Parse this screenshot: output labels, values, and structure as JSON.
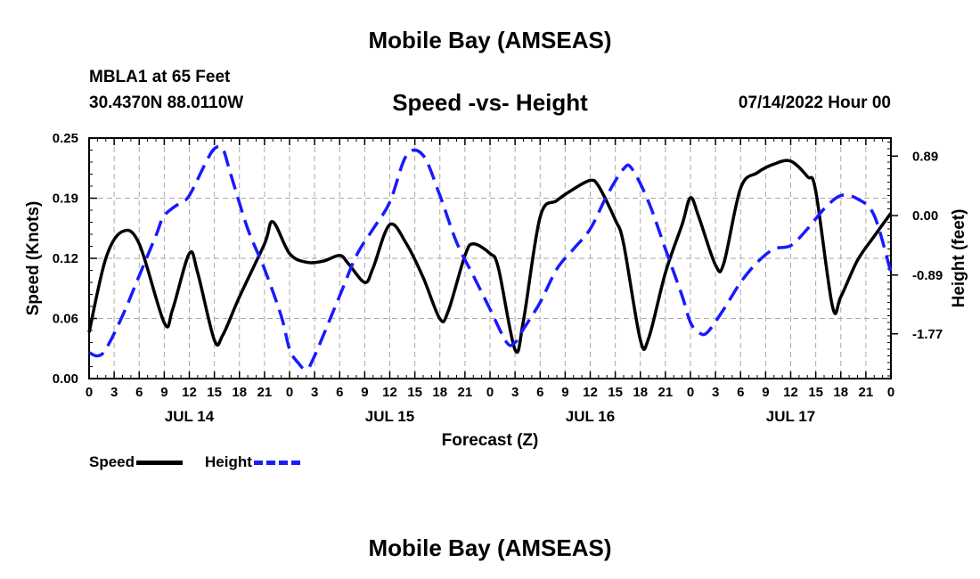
{
  "header": {
    "title": "Mobile Bay (AMSEAS)",
    "station": "MBLA1 at 65 Feet",
    "coords": "30.4370N  88.0110W",
    "subtitle": "Speed -vs- Height",
    "datetime": "07/14/2022 Hour 00"
  },
  "footer": {
    "title": "Mobile Bay (AMSEAS)"
  },
  "chart_data": {
    "type": "line",
    "xlabel": "Forecast (Z)",
    "ylabel_left": "Speed (Knots)",
    "ylabel_right": "Height (feet)",
    "xlim": [
      0,
      96
    ],
    "ylim_left": [
      0,
      0.25
    ],
    "ylim_right": [
      -2.44,
      1.16
    ],
    "left_ticks": [
      {
        "v": 0,
        "label": "0.00"
      },
      {
        "v": 0.0625,
        "label": "0.06"
      },
      {
        "v": 0.125,
        "label": "0.12"
      },
      {
        "v": 0.1875,
        "label": "0.19"
      },
      {
        "v": 0.25,
        "label": "0.25"
      }
    ],
    "right_ticks": [
      {
        "v": 0.89,
        "label": "0.89"
      },
      {
        "v": 0.0,
        "label": "0.00"
      },
      {
        "v": -0.89,
        "label": "-0.89"
      },
      {
        "v": -1.77,
        "label": "-1.77"
      }
    ],
    "x_tick_labels": [
      "0",
      "3",
      "6",
      "9",
      "12",
      "15",
      "18",
      "21",
      "0",
      "3",
      "6",
      "9",
      "12",
      "15",
      "18",
      "21",
      "0",
      "3",
      "6",
      "9",
      "12",
      "15",
      "18",
      "21",
      "0",
      "3",
      "6",
      "9",
      "12",
      "15",
      "18",
      "21",
      "0"
    ],
    "day_labels": [
      {
        "x": 12,
        "label": "JUL 14"
      },
      {
        "x": 36,
        "label": "JUL 15"
      },
      {
        "x": 60,
        "label": "JUL 16"
      },
      {
        "x": 84,
        "label": "JUL 17"
      }
    ],
    "grid": true,
    "legend": "bottom-left",
    "series": [
      {
        "name": "Speed",
        "axis": "left",
        "color": "#000000",
        "dash": "solid",
        "points": [
          [
            0,
            0.048
          ],
          [
            2,
            0.125
          ],
          [
            4,
            0.153
          ],
          [
            6,
            0.14
          ],
          [
            9,
            0.058
          ],
          [
            10,
            0.072
          ],
          [
            12,
            0.13
          ],
          [
            13,
            0.11
          ],
          [
            15,
            0.04
          ],
          [
            16,
            0.045
          ],
          [
            18,
            0.085
          ],
          [
            21,
            0.14
          ],
          [
            22,
            0.163
          ],
          [
            24,
            0.13
          ],
          [
            26,
            0.121
          ],
          [
            28,
            0.122
          ],
          [
            30,
            0.128
          ],
          [
            31,
            0.12
          ],
          [
            33,
            0.1
          ],
          [
            34,
            0.115
          ],
          [
            36,
            0.16
          ],
          [
            38,
            0.14
          ],
          [
            40,
            0.105
          ],
          [
            42,
            0.062
          ],
          [
            43,
            0.07
          ],
          [
            45,
            0.128
          ],
          [
            46,
            0.14
          ],
          [
            48,
            0.13
          ],
          [
            49,
            0.115
          ],
          [
            51,
            0.03
          ],
          [
            52,
            0.06
          ],
          [
            54,
            0.168
          ],
          [
            56,
            0.185
          ],
          [
            58,
            0.197
          ],
          [
            60,
            0.206
          ],
          [
            61,
            0.2
          ],
          [
            63,
            0.165
          ],
          [
            64,
            0.14
          ],
          [
            66,
            0.04
          ],
          [
            67,
            0.042
          ],
          [
            69,
            0.11
          ],
          [
            71,
            0.16
          ],
          [
            72,
            0.188
          ],
          [
            73,
            0.168
          ],
          [
            75,
            0.118
          ],
          [
            76,
            0.12
          ],
          [
            78,
            0.198
          ],
          [
            80,
            0.214
          ],
          [
            82,
            0.223
          ],
          [
            84,
            0.226
          ],
          [
            86,
            0.21
          ],
          [
            87,
            0.195
          ],
          [
            89,
            0.075
          ],
          [
            90,
            0.085
          ],
          [
            92,
            0.123
          ],
          [
            94,
            0.148
          ],
          [
            96,
            0.172
          ]
        ]
      },
      {
        "name": "Height",
        "axis": "right",
        "color": "#1a1aff",
        "dash": "dashed",
        "points": [
          [
            0,
            -2.05
          ],
          [
            1,
            -2.1
          ],
          [
            2,
            -2.0
          ],
          [
            4,
            -1.5
          ],
          [
            6,
            -0.9
          ],
          [
            8,
            -0.3
          ],
          [
            9,
            0.0
          ],
          [
            11,
            0.2
          ],
          [
            12,
            0.3
          ],
          [
            14,
            0.8
          ],
          [
            15,
            1.0
          ],
          [
            16,
            1.0
          ],
          [
            17,
            0.6
          ],
          [
            19,
            -0.2
          ],
          [
            21,
            -0.8
          ],
          [
            23,
            -1.5
          ],
          [
            24,
            -2.0
          ],
          [
            25,
            -2.2
          ],
          [
            26,
            -2.3
          ],
          [
            27,
            -2.1
          ],
          [
            30,
            -1.2
          ],
          [
            32,
            -0.6
          ],
          [
            34,
            -0.2
          ],
          [
            36,
            0.2
          ],
          [
            38,
            0.9
          ],
          [
            40,
            0.9
          ],
          [
            42,
            0.3
          ],
          [
            44,
            -0.4
          ],
          [
            46,
            -0.9
          ],
          [
            48,
            -1.4
          ],
          [
            50,
            -1.9
          ],
          [
            51,
            -1.9
          ],
          [
            52,
            -1.7
          ],
          [
            54,
            -1.3
          ],
          [
            56,
            -0.8
          ],
          [
            58,
            -0.5
          ],
          [
            60,
            -0.2
          ],
          [
            62,
            0.3
          ],
          [
            64,
            0.7
          ],
          [
            65,
            0.7
          ],
          [
            67,
            0.2
          ],
          [
            69,
            -0.5
          ],
          [
            71,
            -1.2
          ],
          [
            72,
            -1.6
          ],
          [
            73,
            -1.75
          ],
          [
            74,
            -1.75
          ],
          [
            76,
            -1.4
          ],
          [
            78,
            -1.0
          ],
          [
            80,
            -0.7
          ],
          [
            82,
            -0.5
          ],
          [
            84,
            -0.45
          ],
          [
            86,
            -0.2
          ],
          [
            88,
            0.1
          ],
          [
            90,
            0.3
          ],
          [
            92,
            0.25
          ],
          [
            94,
            0.0
          ],
          [
            96,
            -0.85
          ]
        ]
      }
    ]
  },
  "legend": {
    "speed_label": "Speed",
    "height_label": "Height"
  }
}
